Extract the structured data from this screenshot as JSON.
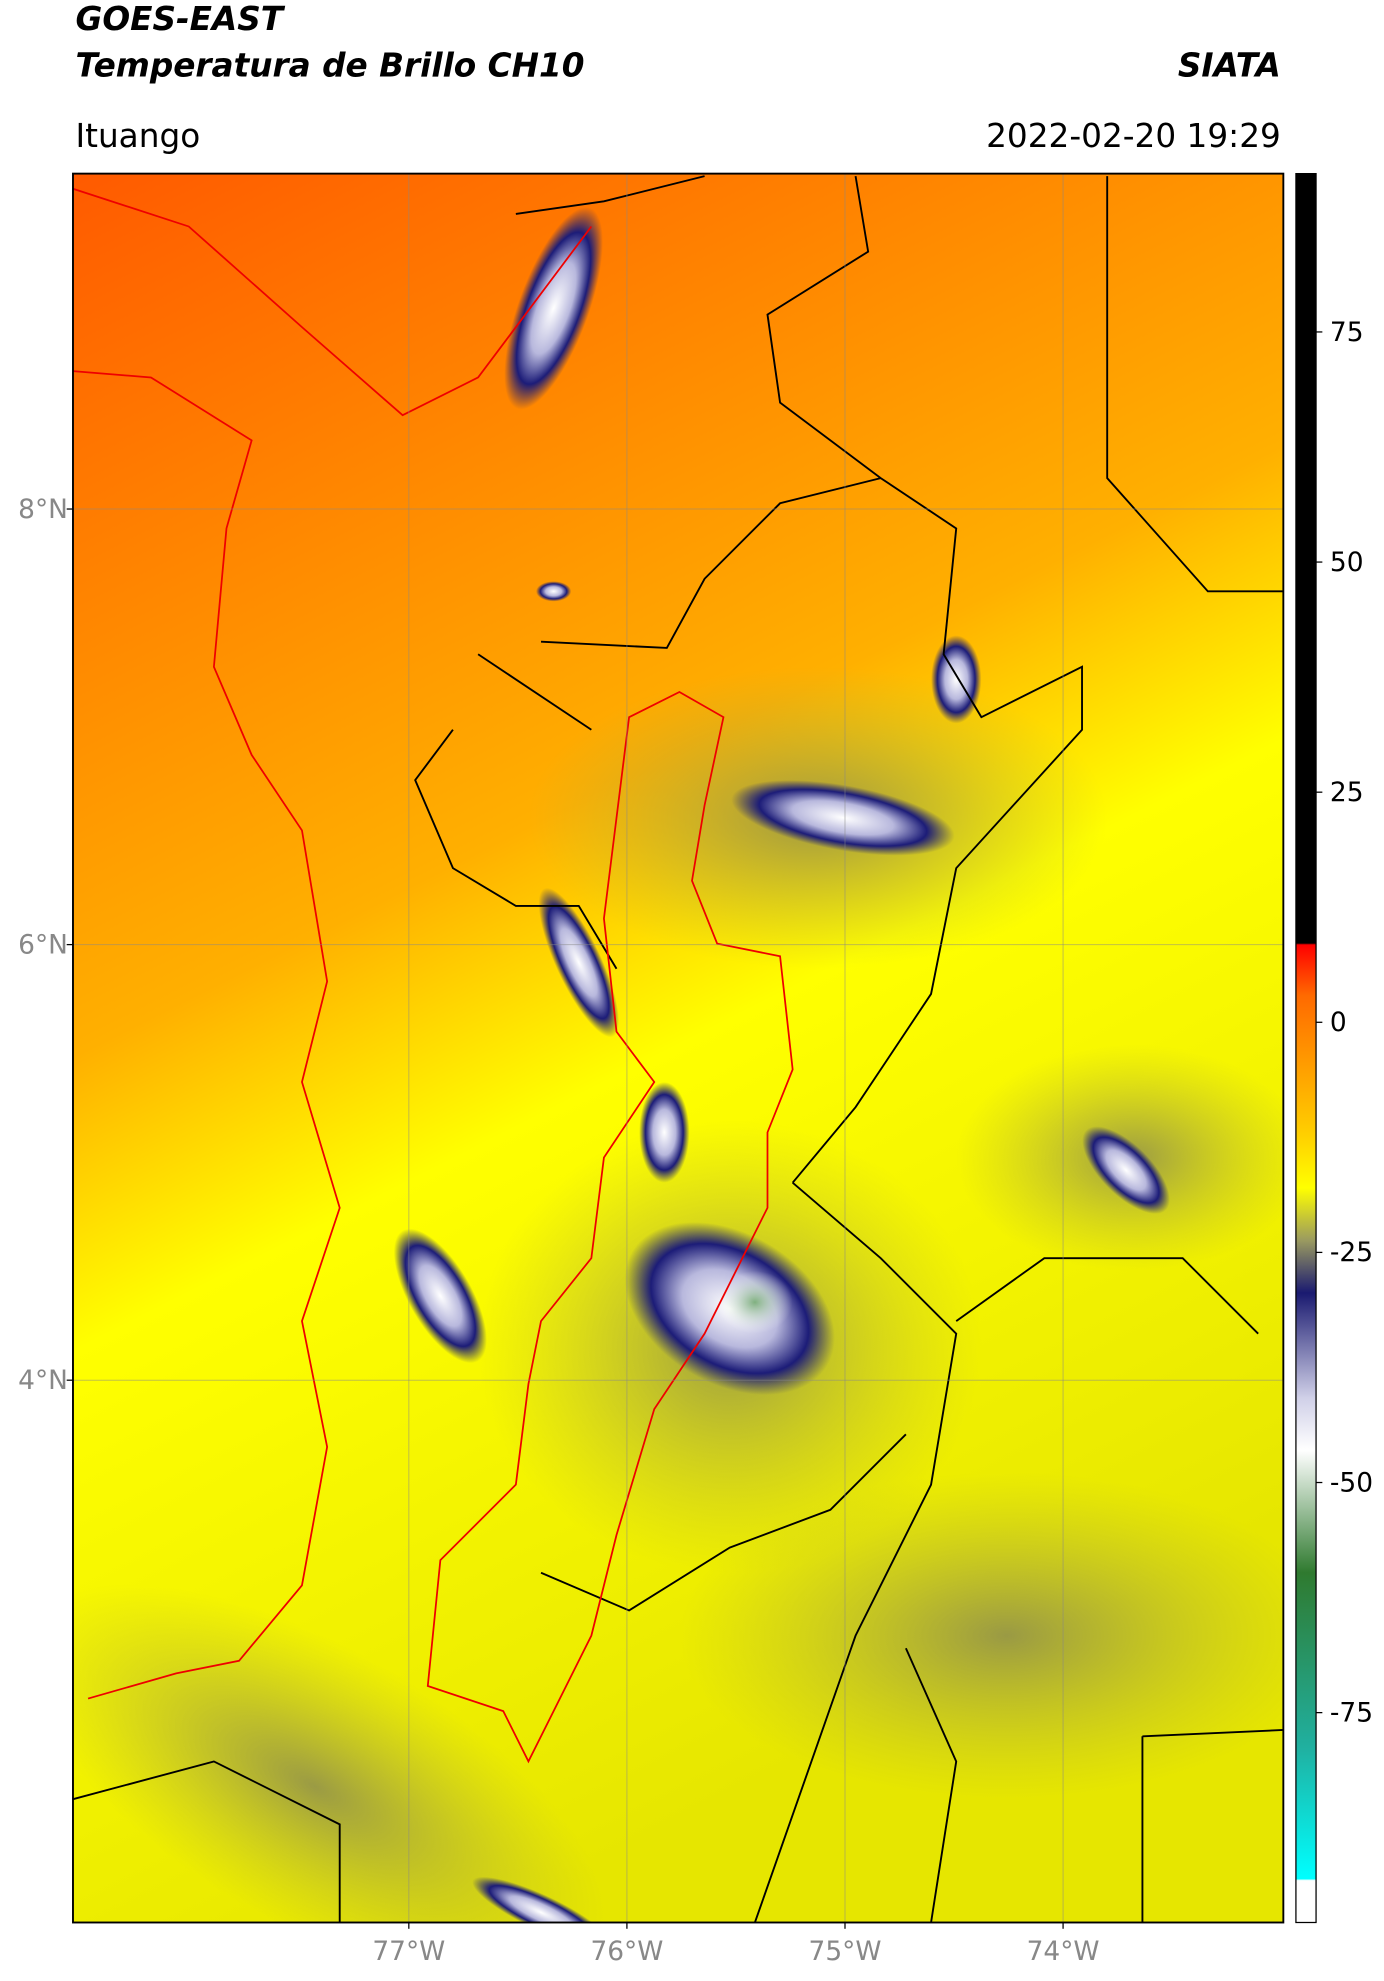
{
  "header": {
    "title": "GOES-EAST",
    "subtitle": "Temperatura de Brillo CH10",
    "source": "SIATA",
    "region": "Ituango",
    "datetime": "2022-02-20 19:29"
  },
  "map": {
    "lon_range": [
      -78.54,
      -72.99
    ],
    "lat_range": [
      1.51,
      9.54
    ],
    "lat_ticks": [
      {
        "value": 8,
        "label": "8°N"
      },
      {
        "value": 6,
        "label": "6°N"
      },
      {
        "value": 4,
        "label": "4°N"
      }
    ],
    "lon_ticks": [
      {
        "value": -77,
        "label": "77°W"
      },
      {
        "value": -76,
        "label": "76°W"
      },
      {
        "value": -75,
        "label": "75°W"
      },
      {
        "value": -74,
        "label": "74°W"
      }
    ]
  },
  "colorbar": {
    "lim": [
      -97.8,
      92.2
    ],
    "ticks": [
      75,
      50,
      25,
      0,
      -25,
      -50,
      -75
    ]
  }
}
